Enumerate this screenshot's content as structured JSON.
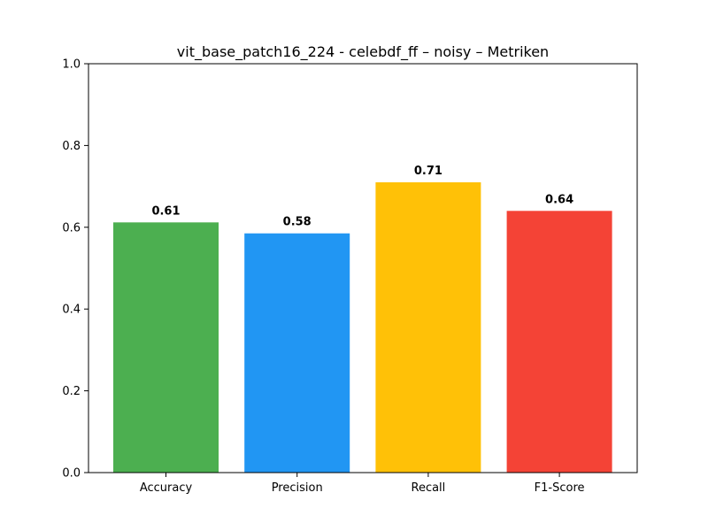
{
  "chart_data": {
    "type": "bar",
    "title": "vit_base_patch16_224 - celebdf_ff – noisy – Metriken",
    "xlabel": "",
    "ylabel": "",
    "categories": [
      "Accuracy",
      "Precision",
      "Recall",
      "F1-Score"
    ],
    "values": [
      0.612,
      0.585,
      0.71,
      0.64
    ],
    "value_labels": [
      "0.61",
      "0.58",
      "0.71",
      "0.64"
    ],
    "colors": [
      "#4caf50",
      "#2196f3",
      "#ffc107",
      "#f44336"
    ],
    "ylim": [
      0,
      1.0
    ],
    "yticks": [
      0.0,
      0.2,
      0.4,
      0.6,
      0.8,
      1.0
    ],
    "ytick_labels": [
      "0.0",
      "0.2",
      "0.4",
      "0.6",
      "0.8",
      "1.0"
    ],
    "grid": false,
    "legend": "none"
  }
}
